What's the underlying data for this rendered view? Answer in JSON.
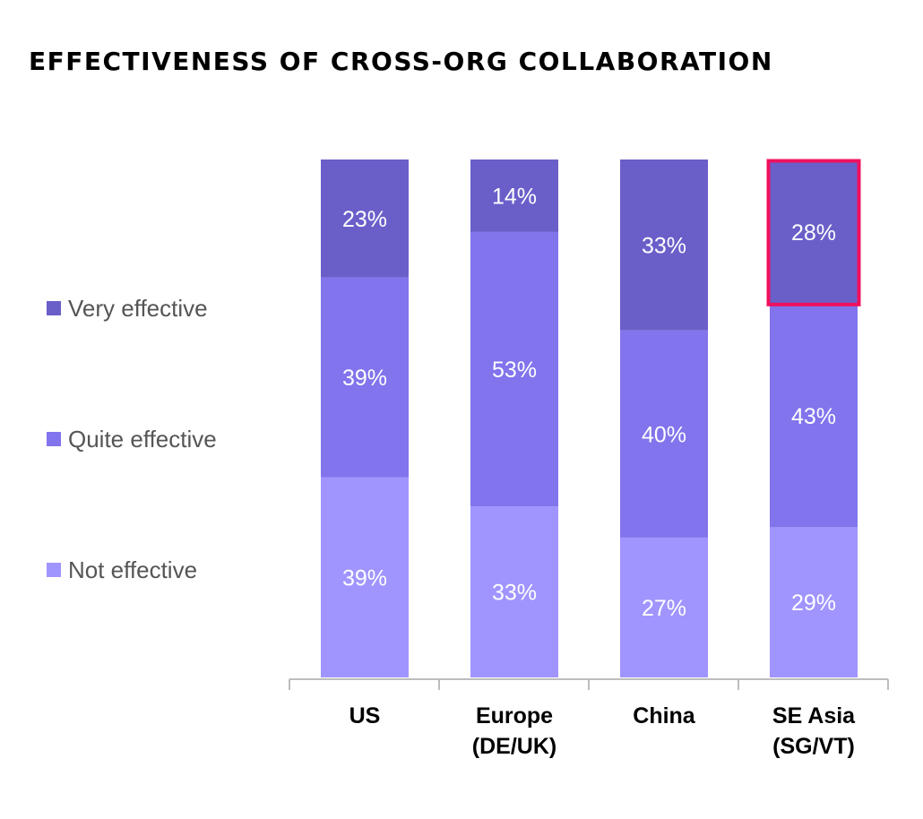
{
  "title": "EFFECTIVENESS OF CROSS-ORG COLLABORATION",
  "colors": {
    "very_effective": "#6a5fc9",
    "quite_effective": "#8174ec",
    "not_effective": "#a095fe",
    "highlight": "#f0105e",
    "axis": "#bdbdbd"
  },
  "chart_data": {
    "type": "bar",
    "stacked": true,
    "title": "EFFECTIVENESS OF CROSS-ORG COLLABORATION",
    "categories": [
      [
        "US"
      ],
      [
        "Europe",
        "(DE/UK)"
      ],
      [
        "China"
      ],
      [
        "SE Asia",
        "(SG/VT)"
      ]
    ],
    "series": [
      {
        "name": "Not effective",
        "color_key": "not_effective",
        "values": [
          39,
          33,
          27,
          29
        ],
        "labels": [
          "39%",
          "33%",
          "27%",
          "29%"
        ]
      },
      {
        "name": "Quite effective",
        "color_key": "quite_effective",
        "values": [
          39,
          53,
          40,
          43
        ],
        "labels": [
          "39%",
          "53%",
          "40%",
          "43%"
        ]
      },
      {
        "name": "Very effective",
        "color_key": "very_effective",
        "values": [
          23,
          14,
          33,
          28
        ],
        "labels": [
          "23%",
          "14%",
          "33%",
          "28%"
        ]
      }
    ],
    "legend": {
      "position": "left",
      "items": [
        {
          "label": "Very effective",
          "color_key": "very_effective"
        },
        {
          "label": "Quite effective",
          "color_key": "quite_effective"
        },
        {
          "label": "Not effective",
          "color_key": "not_effective"
        }
      ]
    },
    "highlight": {
      "category_index": 3,
      "series": "Very effective"
    },
    "ylim": [
      0,
      100
    ],
    "grid": false
  }
}
